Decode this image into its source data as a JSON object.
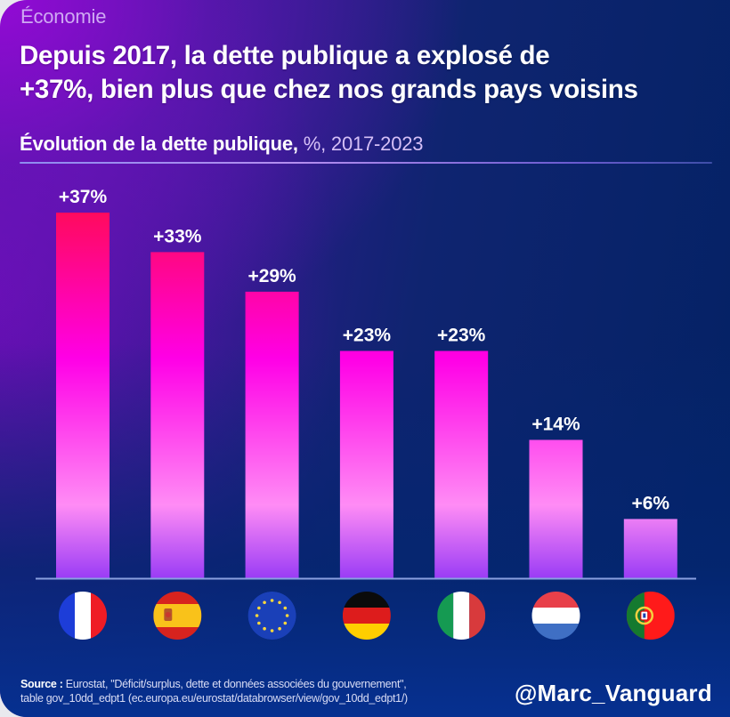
{
  "category": "Économie",
  "headline": {
    "line1": "Depuis 2017, la dette publique a explosé de",
    "line2": "+37%, bien plus que chez nos grands pays voisins"
  },
  "subtitle": {
    "bold": "Évolution de la dette publique,",
    "light": " %, 2017-2023"
  },
  "footer": {
    "source_label": "Source :",
    "source_line1": " Eurostat, \"Déficit/surplus, dette et données associées du gouvernement\",",
    "source_line2": "table gov_10dd_edpt1 (ec.europa.eu/eurostat/databrowser/view/gov_10dd_edpt1/)",
    "handle": "@Marc_Vanguard"
  },
  "colors": {
    "bar_top": "#ff0a5e",
    "bar_mid": "#ff00e6",
    "bar_light": "#ff8cf5",
    "bar_bottom": "#9a3cf5",
    "label": "#ffffff",
    "baseline": "#8aa0e0"
  },
  "chart_data": {
    "type": "bar",
    "title": "Évolution de la dette publique, %, 2017-2023",
    "xlabel": "",
    "ylabel": "%",
    "ylim": [
      0,
      37
    ],
    "grid": false,
    "legend": "none",
    "categories": [
      "France",
      "Espagne",
      "Union européenne",
      "Allemagne",
      "Italie",
      "Pays-Bas",
      "Portugal"
    ],
    "category_icons": [
      "flag-france",
      "flag-spain",
      "flag-eu",
      "flag-germany",
      "flag-italy",
      "flag-netherlands",
      "flag-portugal"
    ],
    "values": [
      37,
      33,
      29,
      23,
      23,
      14,
      6
    ],
    "data_labels": [
      "+37%",
      "+33%",
      "+29%",
      "+23%",
      "+23%",
      "+14%",
      "+6%"
    ]
  }
}
